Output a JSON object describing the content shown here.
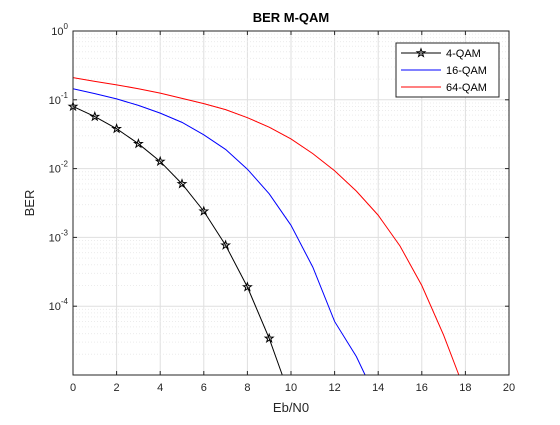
{
  "chart_data": {
    "type": "line",
    "title": "BER M-QAM",
    "xlabel": "Eb/N0",
    "ylabel": "BER",
    "xlim": [
      0,
      20
    ],
    "ylim": [
      1e-05,
      1
    ],
    "yscale": "log",
    "grid": true,
    "minor_grid": true,
    "legend_location": "top-right",
    "x_ticks": [
      "0",
      "2",
      "4",
      "6",
      "8",
      "10",
      "12",
      "14",
      "16",
      "18",
      "20"
    ],
    "y_ticks": [
      {
        "value": 0.0001,
        "base": "10",
        "exp": "-4"
      },
      {
        "value": 0.001,
        "base": "10",
        "exp": "-3"
      },
      {
        "value": 0.01,
        "base": "10",
        "exp": "-2"
      },
      {
        "value": 0.1,
        "base": "10",
        "exp": "-1"
      },
      {
        "value": 1,
        "base": "10",
        "exp": "0"
      }
    ],
    "series": [
      {
        "name": "4-QAM",
        "color": "#000000",
        "marker": "pentagram",
        "x": [
          0,
          1,
          2,
          3,
          4,
          5,
          6,
          7,
          8,
          9,
          9.6
        ],
        "y": [
          0.08,
          0.057,
          0.038,
          0.023,
          0.0127,
          0.006,
          0.0024,
          0.00077,
          0.00019,
          3.4e-05,
          1e-05
        ]
      },
      {
        "name": "16-QAM",
        "color": "#0000ff",
        "marker": "none",
        "x": [
          0,
          1,
          2,
          3,
          4,
          5,
          6,
          7,
          8,
          9,
          10,
          11,
          12,
          13,
          13.4
        ],
        "y": [
          0.145,
          0.123,
          0.103,
          0.083,
          0.064,
          0.047,
          0.031,
          0.019,
          0.0098,
          0.0043,
          0.0015,
          0.00037,
          6e-05,
          1.85e-05,
          1e-05
        ]
      },
      {
        "name": "64-QAM",
        "color": "#ff0000",
        "marker": "none",
        "x": [
          0,
          1,
          2,
          3,
          4,
          5,
          6,
          7,
          8,
          9,
          10,
          11,
          12,
          13,
          14,
          15,
          16,
          17,
          17.7
        ],
        "y": [
          0.21,
          0.185,
          0.165,
          0.145,
          0.125,
          0.105,
          0.088,
          0.072,
          0.055,
          0.04,
          0.027,
          0.0165,
          0.0093,
          0.0047,
          0.0021,
          0.00075,
          0.0002,
          3.8e-05,
          1e-05
        ]
      }
    ]
  }
}
